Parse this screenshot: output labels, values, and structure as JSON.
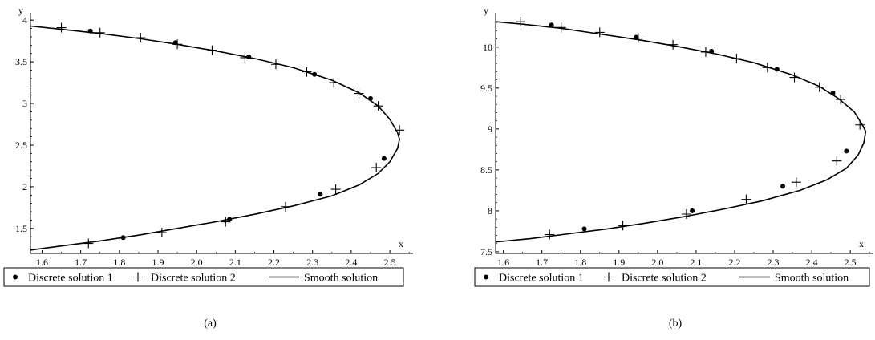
{
  "chart_data": [
    {
      "type": "line",
      "caption": "(a)",
      "xlabel": "x",
      "ylabel": "y",
      "xlim": [
        1.57,
        2.56
      ],
      "ylim": [
        1.2,
        4.05
      ],
      "xticks": [
        "1.6",
        "1.7",
        "1.8",
        "1.9",
        "2.0",
        "2.1",
        "2.2",
        "2.3",
        "2.4",
        "2.5"
      ],
      "yticks": [
        "1.5",
        "2",
        "2.5",
        "3",
        "3.5",
        "4"
      ],
      "legend": [
        "Discrete solution 1",
        "Discrete solution 2",
        "Smooth solution"
      ],
      "legend_position": "bottom",
      "series": [
        {
          "name": "Smooth solution",
          "style": "line",
          "x": [
            1.57,
            1.65,
            1.75,
            1.85,
            1.95,
            2.05,
            2.15,
            2.25,
            2.35,
            2.42,
            2.47,
            2.5,
            2.52,
            2.525,
            2.52,
            2.5,
            2.47,
            2.42,
            2.35,
            2.25,
            2.15,
            2.05,
            1.95,
            1.85,
            1.75,
            1.65,
            1.57
          ],
          "y": [
            3.93,
            3.89,
            3.84,
            3.78,
            3.71,
            3.63,
            3.54,
            3.43,
            3.28,
            3.13,
            2.97,
            2.81,
            2.65,
            2.57,
            2.46,
            2.3,
            2.16,
            2.02,
            1.89,
            1.77,
            1.67,
            1.58,
            1.5,
            1.42,
            1.35,
            1.29,
            1.24
          ]
        },
        {
          "name": "Discrete solution 1",
          "style": "dot",
          "x": [
            1.725,
            1.945,
            2.135,
            2.305,
            2.45,
            2.485,
            2.32,
            2.085,
            1.81
          ],
          "y": [
            3.87,
            3.73,
            3.56,
            3.35,
            3.06,
            2.34,
            1.91,
            1.61,
            1.39
          ]
        },
        {
          "name": "Discrete solution 2",
          "style": "plus",
          "x": [
            1.65,
            1.75,
            1.855,
            1.95,
            2.04,
            2.125,
            2.205,
            2.285,
            2.355,
            2.42,
            2.47,
            2.525,
            2.465,
            2.36,
            2.23,
            2.075,
            1.91,
            1.72
          ],
          "y": [
            3.91,
            3.85,
            3.79,
            3.71,
            3.64,
            3.55,
            3.47,
            3.38,
            3.25,
            3.12,
            2.97,
            2.68,
            2.23,
            1.97,
            1.76,
            1.58,
            1.45,
            1.32
          ]
        }
      ]
    },
    {
      "type": "line",
      "caption": "(b)",
      "xlabel": "x",
      "ylabel": "y",
      "xlim": [
        1.58,
        2.56
      ],
      "ylim": [
        7.48,
        10.38
      ],
      "xticks": [
        "1.6",
        "1.7",
        "1.8",
        "1.9",
        "2.0",
        "2.1",
        "2.2",
        "2.3",
        "2.4",
        "2.5"
      ],
      "yticks": [
        "7.5",
        "8",
        "8.5",
        "9",
        "9.5",
        "10"
      ],
      "legend": [
        "Discrete solution 1",
        "Discrete solution 2",
        "Smooth solution"
      ],
      "legend_position": "bottom",
      "series": [
        {
          "name": "Smooth solution",
          "style": "line",
          "x": [
            1.58,
            1.65,
            1.75,
            1.85,
            1.95,
            2.05,
            2.15,
            2.25,
            2.35,
            2.42,
            2.47,
            2.51,
            2.53,
            2.54,
            2.535,
            2.52,
            2.49,
            2.44,
            2.37,
            2.27,
            2.17,
            2.07,
            1.97,
            1.87,
            1.77,
            1.67,
            1.58
          ],
          "y": [
            10.31,
            10.28,
            10.23,
            10.16,
            10.09,
            10.01,
            9.92,
            9.81,
            9.66,
            9.52,
            9.37,
            9.21,
            9.06,
            8.97,
            8.83,
            8.68,
            8.52,
            8.38,
            8.25,
            8.12,
            8.02,
            7.93,
            7.85,
            7.78,
            7.72,
            7.66,
            7.62
          ]
        },
        {
          "name": "Discrete solution 1",
          "style": "dot",
          "x": [
            1.725,
            1.945,
            2.14,
            2.31,
            2.455,
            2.49,
            2.325,
            2.09,
            1.81
          ],
          "y": [
            10.27,
            10.12,
            9.95,
            9.73,
            9.44,
            8.73,
            8.3,
            8.0,
            7.78
          ]
        },
        {
          "name": "Discrete solution 2",
          "style": "plus",
          "x": [
            1.645,
            1.75,
            1.85,
            1.95,
            2.04,
            2.125,
            2.205,
            2.285,
            2.355,
            2.42,
            2.475,
            2.525,
            2.465,
            2.36,
            2.23,
            2.075,
            1.91,
            1.72
          ],
          "y": [
            10.31,
            10.24,
            10.18,
            10.11,
            10.03,
            9.94,
            9.86,
            9.75,
            9.63,
            9.51,
            9.36,
            9.05,
            8.61,
            8.35,
            8.14,
            7.96,
            7.82,
            7.71
          ]
        }
      ]
    }
  ]
}
